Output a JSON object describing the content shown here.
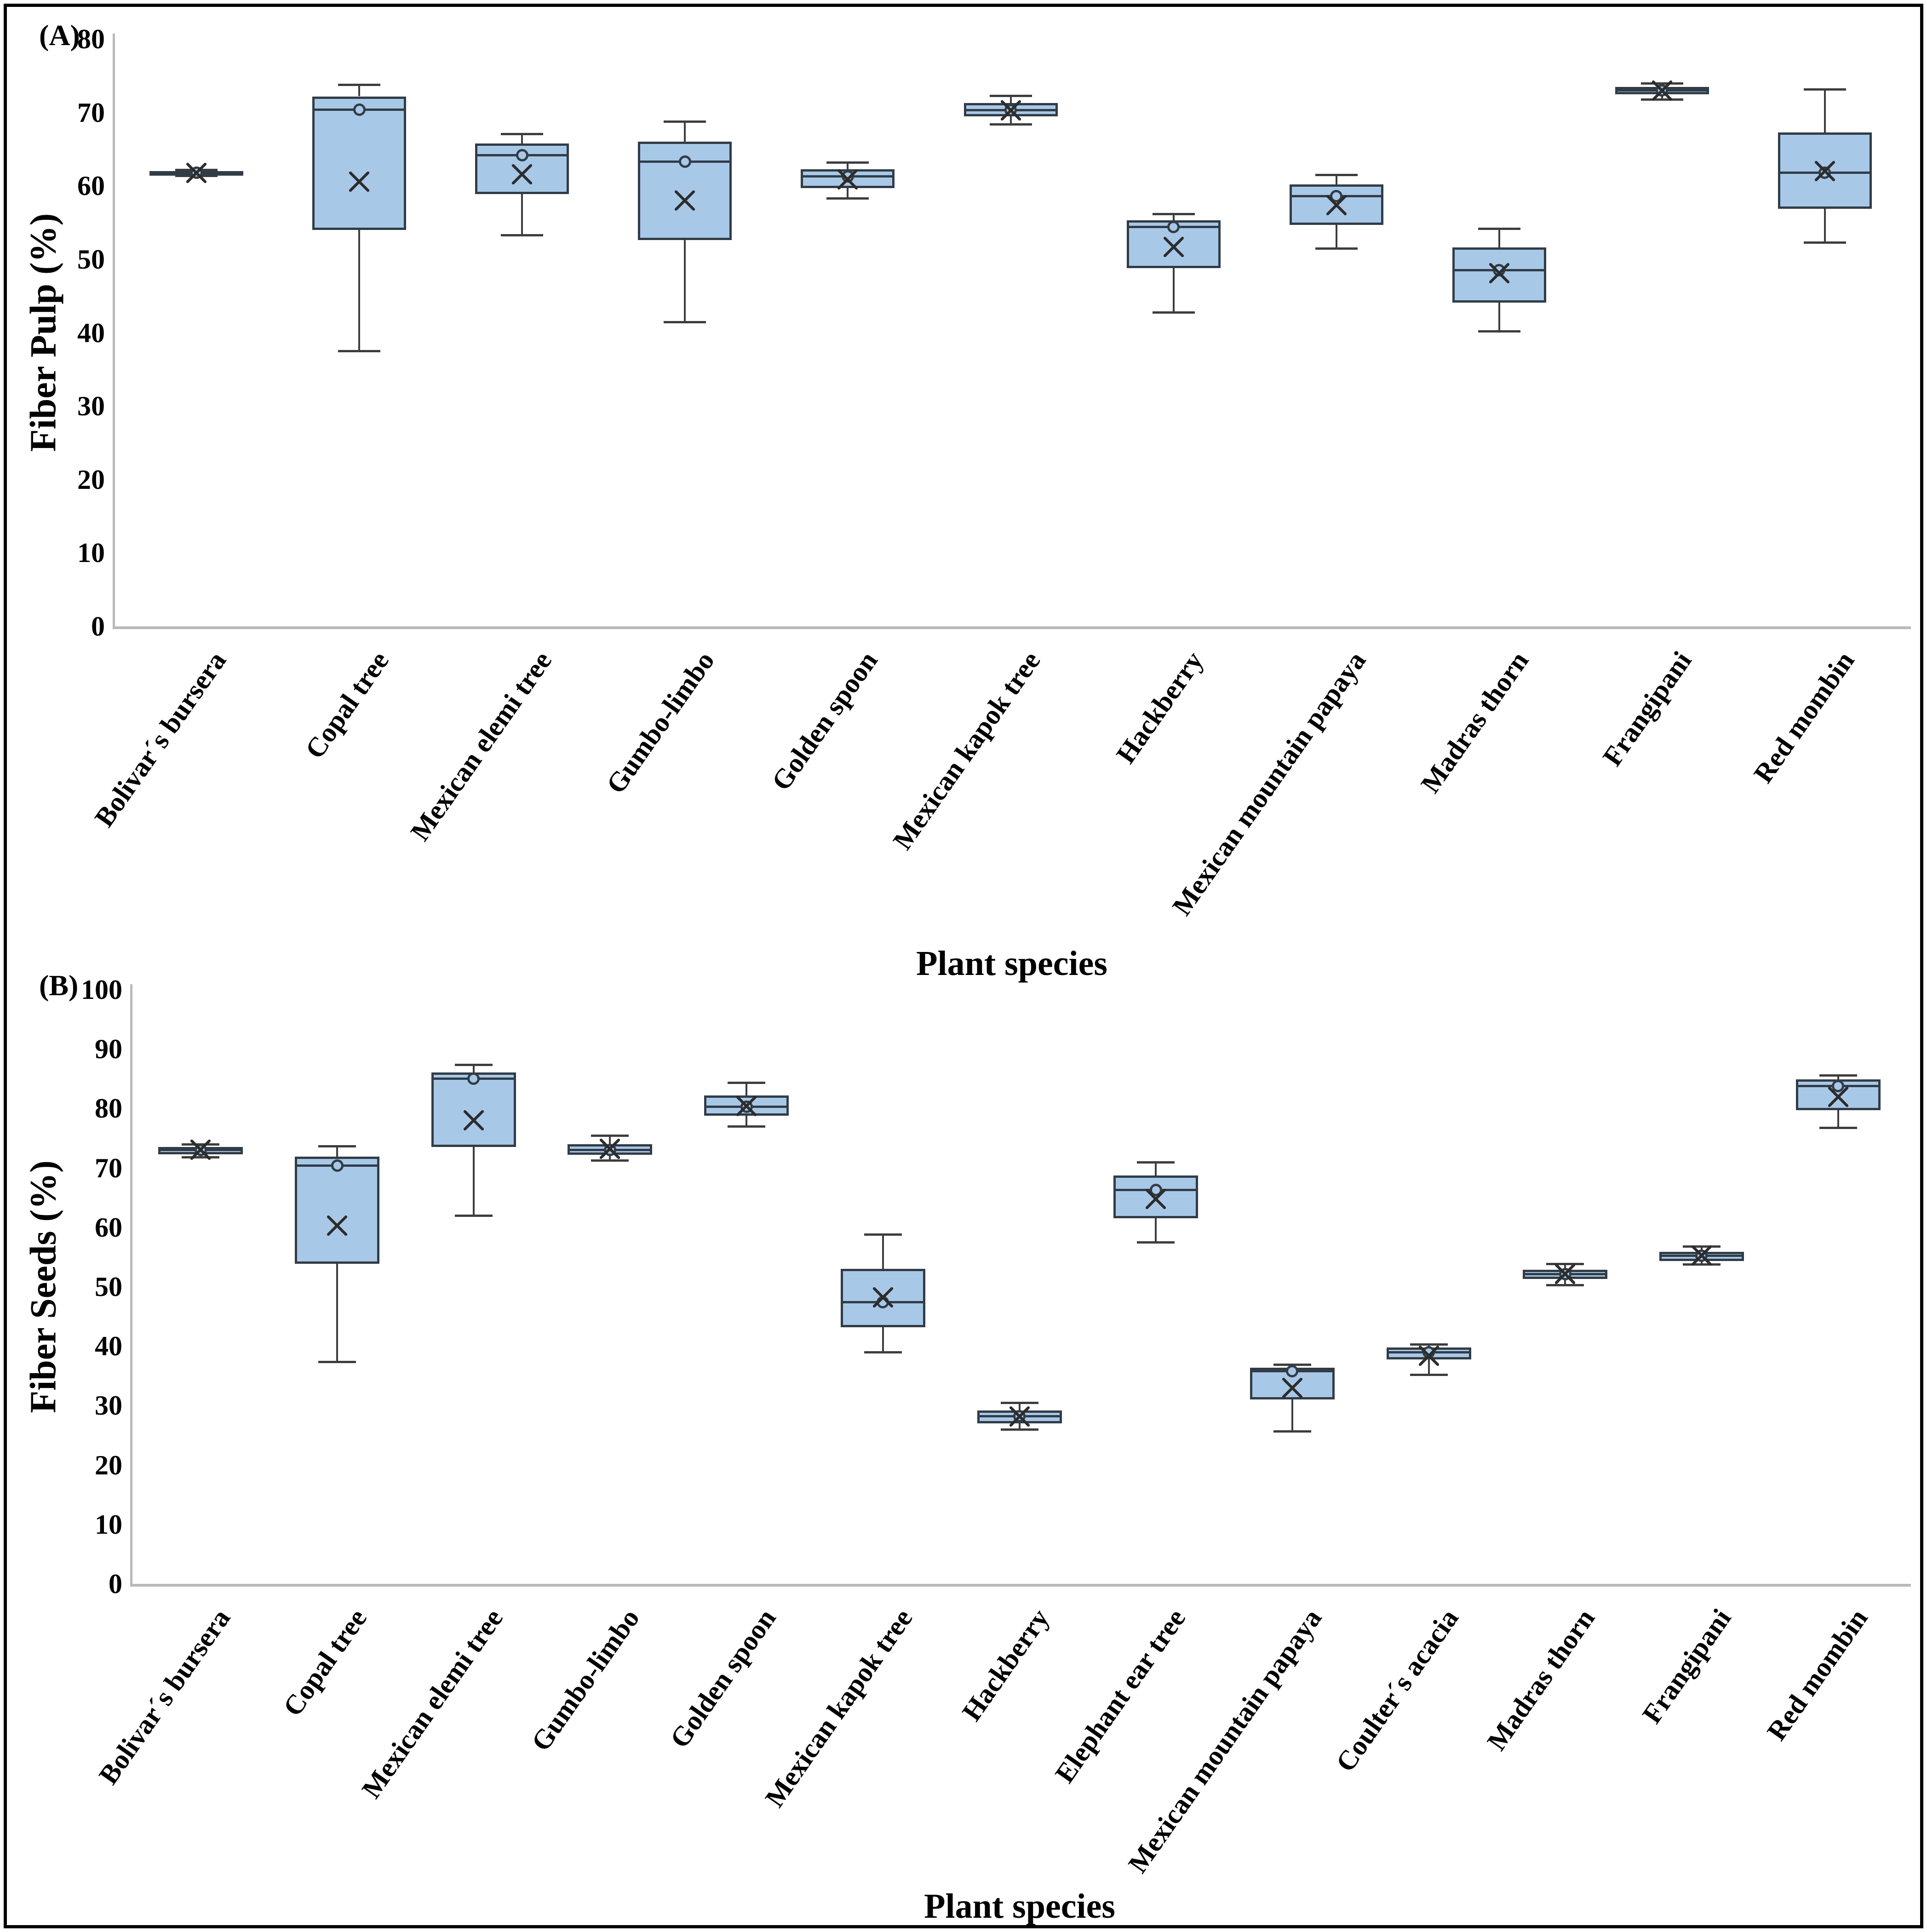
{
  "figure": {
    "panel_a_letter": "(A)",
    "panel_b_letter": "(B)",
    "colors": {
      "box_fill": "#a8c8e8",
      "box_border": "#313c46",
      "whisker": "#3d3d3d",
      "axis_line": "#b9b9b9",
      "text": "#000000",
      "frame": "#000000",
      "background": "#ffffff"
    }
  },
  "chart_data": [
    {
      "type": "box",
      "panel_label": "(A)",
      "xlabel": "Plant species",
      "ylabel": "Fiber Pulp (%)",
      "ylim": [
        0,
        80
      ],
      "yticks": [
        0,
        10,
        20,
        30,
        40,
        50,
        60,
        70,
        80
      ],
      "grid": false,
      "marker_legend": {
        "x_marker": "mean",
        "circle_marker": "median point",
        "line_marker": "median"
      },
      "categories": [
        "Bolivar´s bursera",
        "Copal tree",
        "Mexican elemi tree",
        "Gumbo-limbo",
        "Golden spoon",
        "Mexican kapok tree",
        "Hackberry",
        "Mexican mountain papaya",
        "Madras thorn",
        "Frangipani",
        "Red mombin"
      ],
      "stats": [
        {
          "label": "Bolivar´s bursera",
          "min": 61.4,
          "q1": 61.6,
          "median": 61.8,
          "q3": 62.0,
          "max": 62.2,
          "mean": 61.8
        },
        {
          "label": "Copal tree",
          "min": 37.5,
          "q1": 54.0,
          "median": 70.4,
          "q3": 72.2,
          "max": 73.8,
          "mean": 60.6
        },
        {
          "label": "Mexican elemi tree",
          "min": 53.3,
          "q1": 58.9,
          "median": 64.2,
          "q3": 65.8,
          "max": 67.1,
          "mean": 61.6
        },
        {
          "label": "Gumbo-limbo",
          "min": 41.5,
          "q1": 52.6,
          "median": 63.3,
          "q3": 66.0,
          "max": 68.8,
          "mean": 58.0
        },
        {
          "label": "Golden spoon",
          "min": 58.3,
          "q1": 59.7,
          "median": 61.3,
          "q3": 62.3,
          "max": 63.2,
          "mean": 60.9
        },
        {
          "label": "Mexican kapok tree",
          "min": 68.4,
          "q1": 69.5,
          "median": 70.3,
          "q3": 71.3,
          "max": 72.3,
          "mean": 70.3
        },
        {
          "label": "Hackberry",
          "min": 42.8,
          "q1": 48.8,
          "median": 54.4,
          "q3": 55.3,
          "max": 56.2,
          "mean": 51.7
        },
        {
          "label": "Mexican mountain papaya",
          "min": 51.5,
          "q1": 54.7,
          "median": 58.6,
          "q3": 60.2,
          "max": 61.5,
          "mean": 57.4
        },
        {
          "label": "Madras thorn",
          "min": 40.2,
          "q1": 44.1,
          "median": 48.5,
          "q3": 51.6,
          "max": 54.2,
          "mean": 48.1
        },
        {
          "label": "Frangipani",
          "min": 71.8,
          "q1": 72.5,
          "median": 73.0,
          "q3": 73.5,
          "max": 74.0,
          "mean": 73.0
        },
        {
          "label": "Red mombin",
          "min": 52.3,
          "q1": 56.9,
          "median": 61.8,
          "q3": 67.3,
          "max": 73.2,
          "mean": 62.0
        }
      ]
    },
    {
      "type": "box",
      "panel_label": "(B)",
      "xlabel": "Plant species",
      "ylabel": "Fiber Seeds (%)",
      "ylim": [
        0,
        100
      ],
      "yticks": [
        0,
        10,
        20,
        30,
        40,
        50,
        60,
        70,
        80,
        90,
        100
      ],
      "grid": false,
      "marker_legend": {
        "x_marker": "mean",
        "circle_marker": "median point",
        "line_marker": "median"
      },
      "categories": [
        "Bolivar´s bursera",
        "Copal tree",
        "Mexican elemi tree",
        "Gumbo-limbo",
        "Golden spoon",
        "Mexican kapok tree",
        "Hackberry",
        "Elephant ear tree",
        "Mexican mountain papaya",
        "Coulter´s acacia",
        "Madras thorn",
        "Frangipani",
        "Red mombin"
      ],
      "stats": [
        {
          "label": "Bolivar´s bursera",
          "min": 71.8,
          "q1": 72.3,
          "median": 73.0,
          "q3": 73.5,
          "max": 74.0,
          "mean": 73.1
        },
        {
          "label": "Copal tree",
          "min": 37.4,
          "q1": 53.9,
          "median": 70.4,
          "q3": 71.9,
          "max": 73.7,
          "mean": 60.3
        },
        {
          "label": "Mexican elemi tree",
          "min": 62.0,
          "q1": 73.5,
          "median": 85.0,
          "q3": 86.1,
          "max": 87.4,
          "mean": 78.0
        },
        {
          "label": "Gumbo-limbo",
          "min": 71.3,
          "q1": 72.2,
          "median": 73.0,
          "q3": 74.0,
          "max": 75.5,
          "mean": 73.2
        },
        {
          "label": "Golden spoon",
          "min": 77.0,
          "q1": 78.8,
          "median": 80.3,
          "q3": 82.2,
          "max": 84.4,
          "mean": 80.4
        },
        {
          "label": "Mexican kapok tree",
          "min": 39.0,
          "q1": 43.2,
          "median": 47.4,
          "q3": 53.0,
          "max": 58.8,
          "mean": 48.2
        },
        {
          "label": "Hackberry",
          "min": 26.0,
          "q1": 27.0,
          "median": 28.2,
          "q3": 29.2,
          "max": 30.5,
          "mean": 28.2
        },
        {
          "label": "Elephant ear tree",
          "min": 57.5,
          "q1": 61.5,
          "median": 66.3,
          "q3": 68.7,
          "max": 71.0,
          "mean": 64.8
        },
        {
          "label": "Mexican mountain papaya",
          "min": 25.7,
          "q1": 31.0,
          "median": 35.8,
          "q3": 36.4,
          "max": 36.9,
          "mean": 33.0
        },
        {
          "label": "Coulter´s acacia",
          "min": 35.2,
          "q1": 37.8,
          "median": 39.0,
          "q3": 39.8,
          "max": 40.3,
          "mean": 38.4
        },
        {
          "label": "Madras thorn",
          "min": 50.3,
          "q1": 51.3,
          "median": 52.1,
          "q3": 52.9,
          "max": 53.9,
          "mean": 52.2
        },
        {
          "label": "Frangipani",
          "min": 53.8,
          "q1": 54.3,
          "median": 55.2,
          "q3": 55.9,
          "max": 56.8,
          "mean": 55.3
        },
        {
          "label": "Red mombin",
          "min": 76.8,
          "q1": 79.7,
          "median": 83.8,
          "q3": 84.9,
          "max": 85.6,
          "mean": 82.0
        }
      ]
    }
  ]
}
